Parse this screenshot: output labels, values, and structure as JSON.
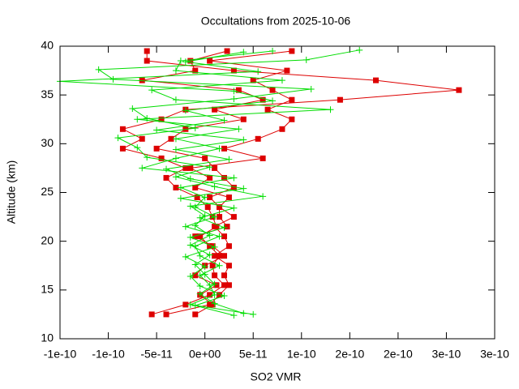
{
  "chart_data": {
    "type": "line",
    "title": "Occultations from 2025-10-06",
    "xlabel": "SO2 VMR",
    "ylabel": "Altitude (km)",
    "xlim": [
      -1.5e-10,
      3e-10
    ],
    "ylim": [
      10,
      40
    ],
    "xticks": [
      {
        "value": -1.5e-10,
        "label": "-1e-10"
      },
      {
        "value": -1e-10,
        "label": "-1e-10"
      },
      {
        "value": -5e-11,
        "label": "-5e-11"
      },
      {
        "value": 0,
        "label": "0e+00"
      },
      {
        "value": 5e-11,
        "label": "5e-11"
      },
      {
        "value": 1e-10,
        "label": "1e-10"
      },
      {
        "value": 1.5e-10,
        "label": "2e-10"
      },
      {
        "value": 2e-10,
        "label": "2e-10"
      },
      {
        "value": 2.5e-10,
        "label": "3e-10"
      },
      {
        "value": 3e-10,
        "label": "3e-10"
      }
    ],
    "yticks": [
      10,
      15,
      20,
      25,
      30,
      35,
      40
    ],
    "grid": false,
    "series": [
      {
        "color": "#dd0000",
        "marker": "square",
        "x": [
          -5.5e-11,
          -2e-11,
          5e-12,
          2e-11,
          1e-11,
          8e-12,
          1.5e-11,
          5e-12,
          -5e-12,
          1.2e-11,
          8e-12,
          3e-12,
          -8e-12,
          -3e-11,
          -4e-11,
          -2e-11,
          -4.5e-11,
          -8.5e-11,
          -6.5e-11,
          -8.5e-11,
          -4.5e-11,
          -2e-11,
          1.4e-10,
          2.63e-10,
          1.77e-10,
          3e-11,
          -6e-11,
          -6e-11
        ],
        "values": [
          12.5,
          13.5,
          14.5,
          15.5,
          16.5,
          17.5,
          18.5,
          19.5,
          20.5,
          21.5,
          22.5,
          23.5,
          24.5,
          25.5,
          26.5,
          27.5,
          28.5,
          29.5,
          30.5,
          31.5,
          32.5,
          33.5,
          34.5,
          35.5,
          36.5,
          37.5,
          38.5,
          39.5
        ]
      },
      {
        "color": "#dd0000",
        "marker": "square",
        "x": [
          -4e-11,
          5e-12,
          1.5e-11,
          2.5e-11,
          2e-11,
          2.5e-11,
          1e-11,
          2.5e-11,
          2e-11,
          1e-11,
          3e-11,
          1.5e-11,
          2.5e-11,
          -1e-11,
          5e-12,
          -1.5e-11,
          6e-11,
          2e-11,
          5.5e-11,
          8e-11,
          9e-11,
          6.5e-11,
          9e-11,
          7e-11,
          5e-11,
          8.5e-11,
          5e-12,
          9e-11
        ],
        "values": [
          12.5,
          13.5,
          14.5,
          15.5,
          16.5,
          17.5,
          18.5,
          19.5,
          20.5,
          21.5,
          22.5,
          23.5,
          24.5,
          25.5,
          26.5,
          27.5,
          28.5,
          29.5,
          30.5,
          31.5,
          32.5,
          33.5,
          34.5,
          35.5,
          36.5,
          37.5,
          38.5,
          39.5
        ]
      },
      {
        "color": "#dd0000",
        "marker": "square",
        "x": [
          -1e-11,
          8e-12,
          -5e-12,
          1.2e-11,
          -1e-11,
          0,
          2e-11,
          8e-12,
          -1e-11,
          2.3e-11,
          1.5e-11,
          1.5e-11,
          5e-12,
          3e-11,
          2e-11,
          1e-11,
          0,
          -5e-11,
          -3.5e-11,
          -2e-11,
          4e-11,
          1e-11,
          6e-11,
          3.5e-11,
          -6.5e-11,
          -1e-11,
          -1.5e-11,
          2.3e-11
        ],
        "values": [
          12.5,
          13.5,
          14.5,
          15.5,
          16.5,
          17.5,
          18.5,
          19.5,
          20.5,
          21.5,
          22.5,
          23.5,
          24.5,
          25.5,
          26.5,
          27.5,
          28.5,
          29.5,
          30.5,
          31.5,
          32.5,
          33.5,
          34.5,
          35.5,
          36.5,
          37.5,
          38.5,
          39.5
        ]
      },
      {
        "color": "#00dd00",
        "marker": "plus",
        "x": [
          4e-11,
          1e-11,
          -5e-12,
          1e-11,
          0,
          -1e-11,
          5e-12,
          -1.5e-11,
          5e-12,
          -1e-11,
          0,
          -1.5e-11,
          6e-11,
          1e-11,
          -3e-11,
          5e-12,
          -6e-11,
          -7e-11,
          -9e-11,
          -1e-11,
          -6e-11,
          -7.5e-11,
          3e-11,
          1.1e-10,
          -9.5e-11,
          -1.1e-10,
          1.05e-10,
          1.6e-10
        ],
        "values": [
          12.6,
          13.6,
          14.6,
          15.6,
          16.6,
          17.6,
          18.6,
          19.6,
          20.6,
          21.6,
          22.6,
          23.6,
          24.6,
          25.6,
          26.6,
          27.6,
          28.6,
          29.6,
          30.6,
          31.6,
          32.6,
          33.6,
          34.6,
          35.6,
          36.6,
          37.6,
          38.6,
          39.6
        ]
      },
      {
        "color": "#00dd00",
        "marker": "plus",
        "x": [
          3e-11,
          -1e-11,
          2e-11,
          -5e-12,
          -1.5e-11,
          0,
          -2e-11,
          1e-11,
          -1.5e-11,
          2e-11,
          -5e-12,
          3e-11,
          -2.5e-11,
          4e-11,
          -1.5e-11,
          -4e-11,
          2.5e-11,
          -3e-11,
          4e-11,
          -5e-11,
          2e-11,
          -2e-11,
          7e-11,
          3e-11,
          -1.5e-10,
          5.5e-11,
          -2e-11,
          4e-11
        ],
        "values": [
          12.4,
          13.4,
          14.4,
          15.4,
          16.4,
          17.4,
          18.4,
          19.4,
          20.4,
          21.4,
          22.4,
          23.4,
          24.4,
          25.4,
          26.4,
          27.4,
          28.4,
          29.4,
          30.4,
          31.4,
          32.4,
          33.4,
          34.4,
          35.4,
          36.4,
          37.4,
          38.4,
          39.4
        ]
      },
      {
        "color": "#00dd00",
        "marker": "plus",
        "x": [
          5e-11,
          -1.5e-11,
          1e-11,
          5e-12,
          -5e-12,
          1.5e-11,
          -5e-12,
          -1e-11,
          1.5e-11,
          -2e-11,
          1e-11,
          -1e-11,
          0,
          -2.5e-11,
          3e-11,
          -6.5e-11,
          -3e-11,
          1.5e-11,
          -3e-11,
          3.5e-11,
          -7e-11,
          1.3e-10,
          -3e-11,
          -5.5e-11,
          8e-11,
          -3e-11,
          -2.5e-11,
          7e-11
        ],
        "values": [
          12.5,
          13.5,
          14.5,
          15.5,
          16.5,
          17.5,
          18.5,
          19.5,
          20.5,
          21.5,
          22.5,
          23.5,
          24.5,
          25.5,
          26.5,
          27.5,
          28.5,
          29.5,
          30.5,
          31.5,
          32.5,
          33.5,
          34.5,
          35.5,
          36.5,
          37.5,
          38.5,
          39.5
        ]
      }
    ]
  }
}
